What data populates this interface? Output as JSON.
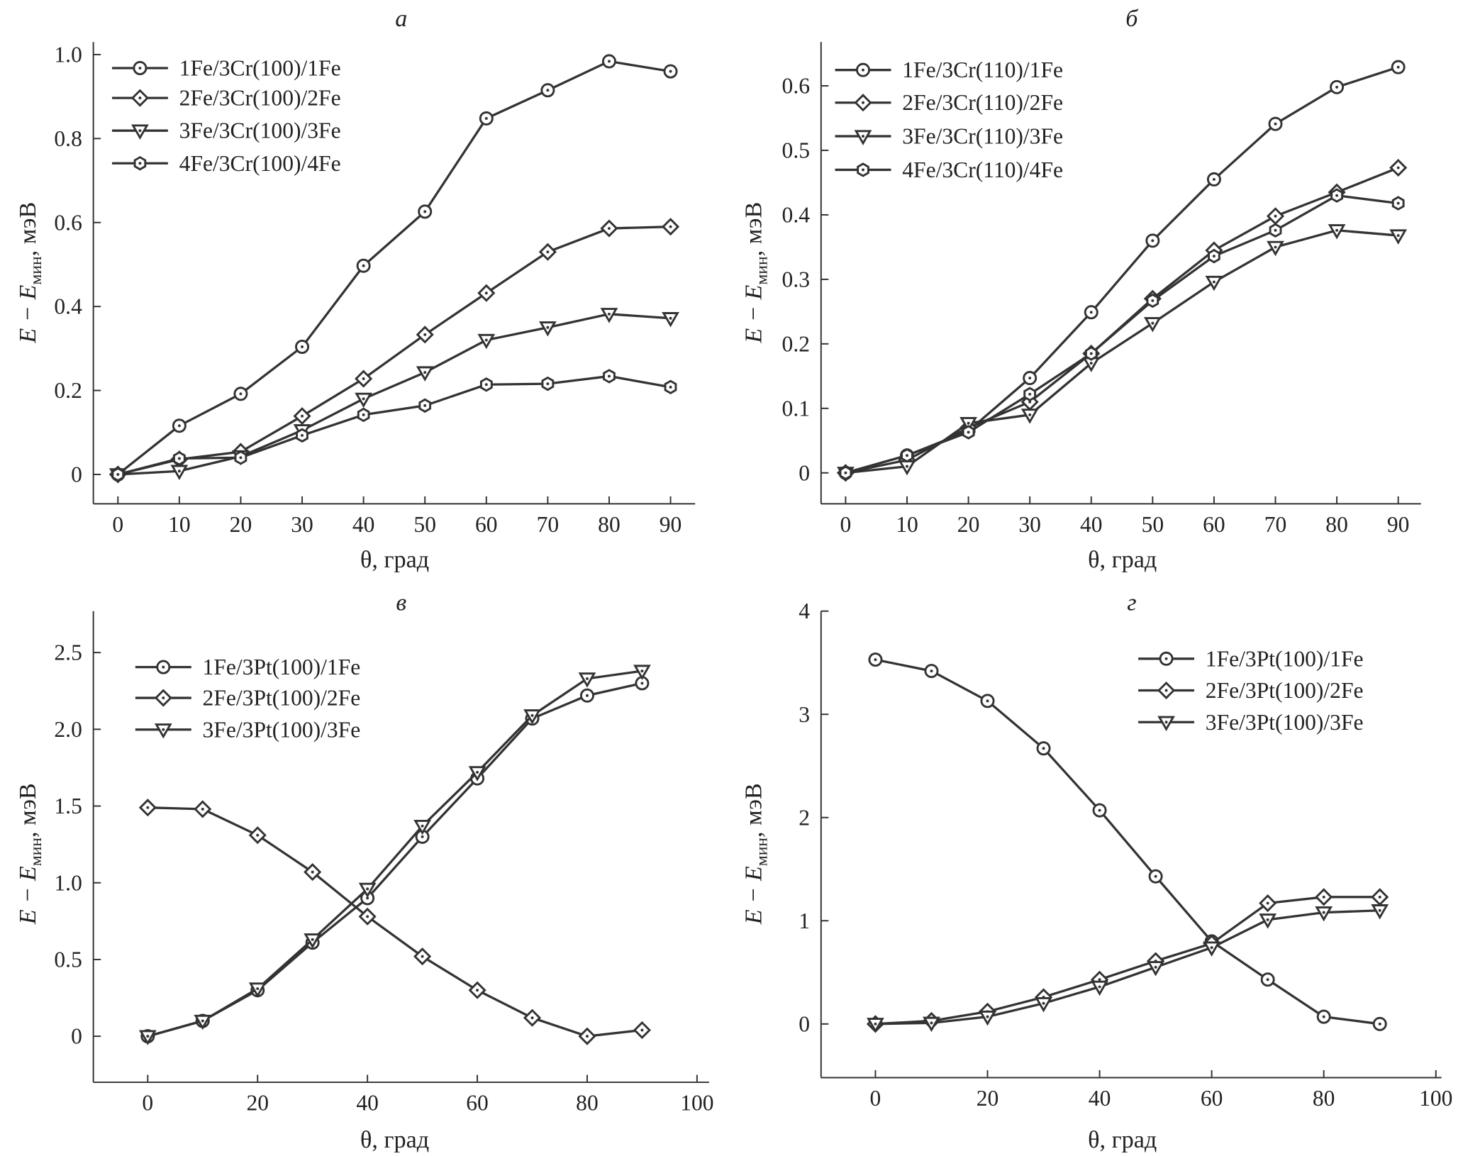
{
  "chart_data": [
    {
      "type": "line",
      "panel_label": "а",
      "xlabel": "θ, град",
      "ylabel_main": "E − E",
      "ylabel_sub": "мин",
      "ylabel_unit": ", мэВ",
      "xlim": [
        -4,
        94
      ],
      "ylim": [
        -0.07,
        1.03
      ],
      "xticks": [
        0,
        10,
        20,
        30,
        40,
        50,
        60,
        70,
        80,
        90
      ],
      "yticks": [
        0,
        0.2,
        0.4,
        0.6,
        0.8,
        1.0
      ],
      "ytick_labels": [
        "0",
        "0.2",
        "0.4",
        "0.6",
        "0.8",
        "1.0"
      ],
      "legend_position": "top-left",
      "x": [
        0,
        10,
        20,
        30,
        40,
        50,
        60,
        70,
        80,
        90
      ],
      "series": [
        {
          "name": "1Fe/3Cr(100)/1Fe",
          "marker": "circle",
          "values": [
            0,
            0.116,
            0.192,
            0.304,
            0.497,
            0.626,
            0.848,
            0.915,
            0.984,
            0.96
          ]
        },
        {
          "name": "2Fe/3Cr(100)/2Fe",
          "marker": "diamond",
          "values": [
            0,
            0.036,
            0.054,
            0.139,
            0.228,
            0.333,
            0.432,
            0.53,
            0.586,
            0.59
          ]
        },
        {
          "name": "3Fe/3Cr(100)/3Fe",
          "marker": "triangle-down",
          "values": [
            0,
            0.008,
            0.043,
            0.105,
            0.18,
            0.243,
            0.32,
            0.35,
            0.382,
            0.372
          ]
        },
        {
          "name": "4Fe/3Cr(100)/4Fe",
          "marker": "hexagon",
          "values": [
            0,
            0.038,
            0.04,
            0.093,
            0.142,
            0.164,
            0.214,
            0.216,
            0.234,
            0.208
          ]
        }
      ]
    },
    {
      "type": "line",
      "panel_label": "б",
      "xlabel": "θ, град",
      "ylabel_main": "E − E",
      "ylabel_sub": "мин",
      "ylabel_unit": ", мэВ",
      "xlim": [
        -4,
        93.7
      ],
      "ylim": [
        -0.048,
        0.668
      ],
      "xticks": [
        0,
        10,
        20,
        30,
        40,
        50,
        60,
        70,
        80,
        90
      ],
      "yticks": [
        0,
        0.1,
        0.2,
        0.3,
        0.4,
        0.5,
        0.6
      ],
      "ytick_labels": [
        "0",
        "0.1",
        "0.2",
        "0.3",
        "0.4",
        "0.5",
        "0.6"
      ],
      "legend_position": "top-left",
      "x": [
        0,
        10,
        20,
        30,
        40,
        50,
        60,
        70,
        80,
        90
      ],
      "series": [
        {
          "name": "1Fe/3Cr(110)/1Fe",
          "marker": "circle",
          "values": [
            0,
            0.027,
            0.065,
            0.147,
            0.249,
            0.36,
            0.455,
            0.541,
            0.598,
            0.629
          ]
        },
        {
          "name": "2Fe/3Cr(110)/2Fe",
          "marker": "diamond",
          "values": [
            0,
            0.02,
            0.07,
            0.11,
            0.185,
            0.27,
            0.345,
            0.398,
            0.435,
            0.473
          ]
        },
        {
          "name": "3Fe/3Cr(110)/3Fe",
          "marker": "triangle-down",
          "values": [
            0,
            0.01,
            0.077,
            0.09,
            0.17,
            0.232,
            0.296,
            0.35,
            0.376,
            0.368
          ]
        },
        {
          "name": "4Fe/3Cr(110)/4Fe",
          "marker": "hexagon",
          "values": [
            0,
            0.027,
            0.063,
            0.122,
            0.185,
            0.267,
            0.336,
            0.376,
            0.43,
            0.418
          ]
        }
      ]
    },
    {
      "type": "line",
      "panel_label": "в",
      "xlabel": "θ, град",
      "ylabel_main": "E − E",
      "ylabel_sub": "мин",
      "ylabel_unit": ", мэВ",
      "xlim": [
        -9.9,
        102.2
      ],
      "ylim": [
        -0.3,
        2.77
      ],
      "xticks": [
        0,
        20,
        40,
        60,
        80,
        100
      ],
      "yticks": [
        0,
        0.5,
        1.0,
        1.5,
        2.0,
        2.5
      ],
      "ytick_labels": [
        "0",
        "0.5",
        "1.0",
        "1.5",
        "2.0",
        "2.5"
      ],
      "legend_position": "top-left",
      "x": [
        0,
        10,
        20,
        30,
        40,
        50,
        60,
        70,
        80,
        90
      ],
      "series": [
        {
          "name": "1Fe/3Pt(100)/1Fe",
          "marker": "circle",
          "values": [
            0,
            0.1,
            0.3,
            0.61,
            0.9,
            1.3,
            1.68,
            2.07,
            2.22,
            2.3
          ]
        },
        {
          "name": "2Fe/3Pt(100)/2Fe",
          "marker": "diamond",
          "values": [
            1.49,
            1.48,
            1.31,
            1.07,
            0.78,
            0.52,
            0.3,
            0.12,
            0.0,
            0.04
          ]
        },
        {
          "name": "3Fe/3Pt(100)/3Fe",
          "marker": "triangle-down",
          "values": [
            0,
            0.1,
            0.31,
            0.63,
            0.96,
            1.37,
            1.72,
            2.09,
            2.33,
            2.38
          ]
        }
      ]
    },
    {
      "type": "line",
      "panel_label": "г",
      "xlabel": "θ, град",
      "ylabel_main": "E − E",
      "ylabel_sub": "мин",
      "ylabel_unit": ", мэВ",
      "xlim": [
        -9.7,
        101
      ],
      "ylim": [
        -0.52,
        4
      ],
      "xticks": [
        0,
        20,
        40,
        60,
        80,
        100
      ],
      "yticks": [
        0,
        1,
        2,
        3,
        4
      ],
      "ytick_labels": [
        "0",
        "1",
        "2",
        "3",
        "4"
      ],
      "legend_position": "top-right",
      "x": [
        0,
        10,
        20,
        30,
        40,
        50,
        60,
        70,
        80,
        90
      ],
      "series": [
        {
          "name": "1Fe/3Pt(100)/1Fe",
          "marker": "circle",
          "values": [
            3.53,
            3.42,
            3.13,
            2.67,
            2.07,
            1.43,
            0.8,
            0.43,
            0.07,
            0.0
          ]
        },
        {
          "name": "2Fe/3Pt(100)/2Fe",
          "marker": "diamond",
          "values": [
            0,
            0.03,
            0.12,
            0.26,
            0.43,
            0.61,
            0.78,
            1.17,
            1.23,
            1.23
          ]
        },
        {
          "name": "3Fe/3Pt(100)/3Fe",
          "marker": "triangle-down",
          "values": [
            0,
            0.01,
            0.07,
            0.2,
            0.36,
            0.55,
            0.74,
            1.01,
            1.08,
            1.1
          ]
        }
      ]
    }
  ],
  "colors": {
    "line": "#333333",
    "marker_fill": "#ffffff"
  }
}
